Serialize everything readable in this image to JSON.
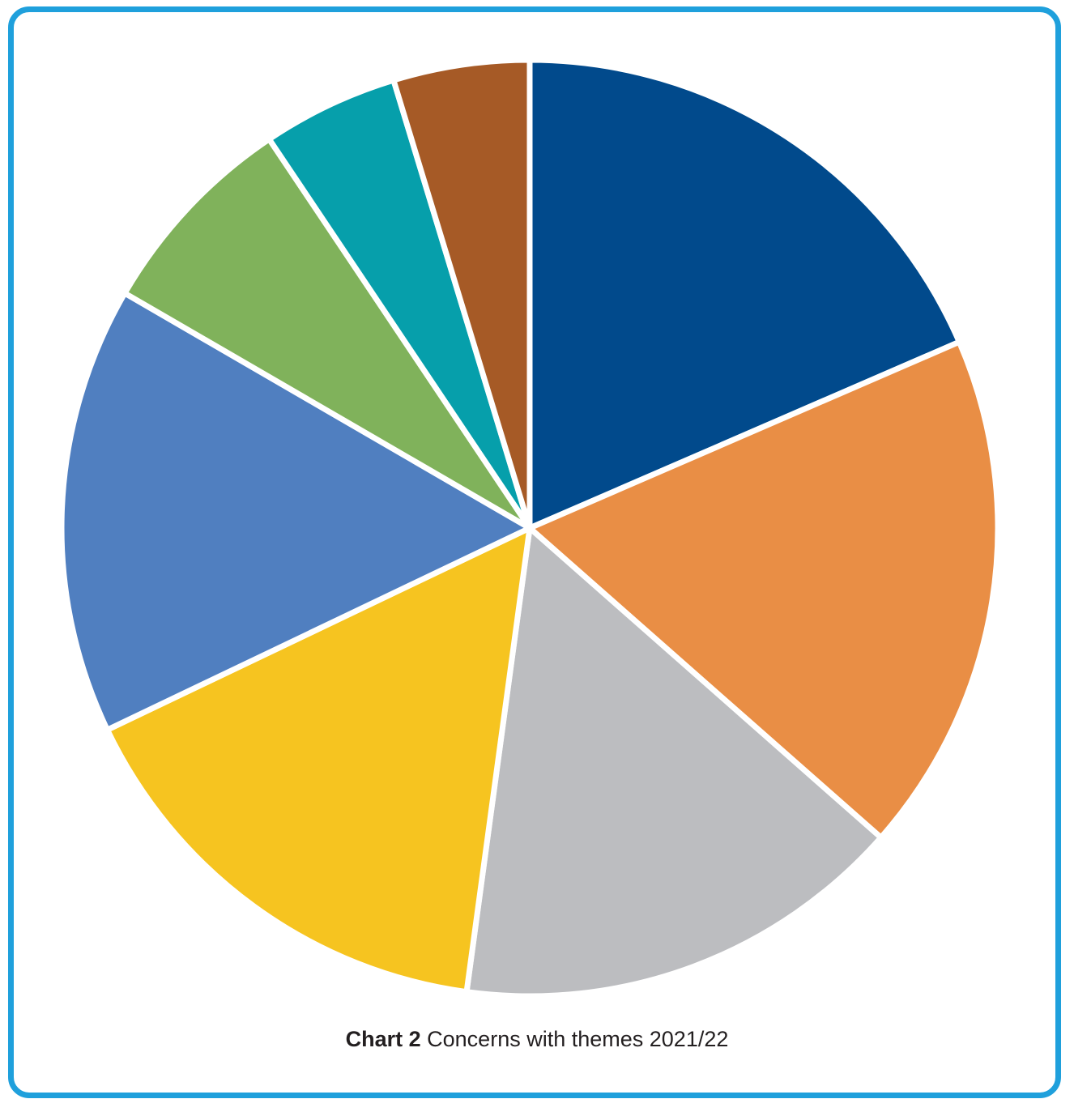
{
  "caption": {
    "label": "Chart 2",
    "text": "Concerns with themes 2021/22"
  },
  "chart_data": {
    "type": "pie",
    "start_angle_deg": 0,
    "direction": "clockwise",
    "slices": [
      {
        "value": 18.9,
        "color": "#014a8c"
      },
      {
        "value": 18.4,
        "color": "#e98e45"
      },
      {
        "value": 16.0,
        "color": "#bcbdc0"
      },
      {
        "value": 16.1,
        "color": "#f6c420"
      },
      {
        "value": 15.8,
        "color": "#507fc0"
      },
      {
        "value": 7.4,
        "color": "#80b25b"
      },
      {
        "value": 4.8,
        "color": "#069fab"
      },
      {
        "value": 4.8,
        "color": "#a65a26"
      }
    ]
  }
}
